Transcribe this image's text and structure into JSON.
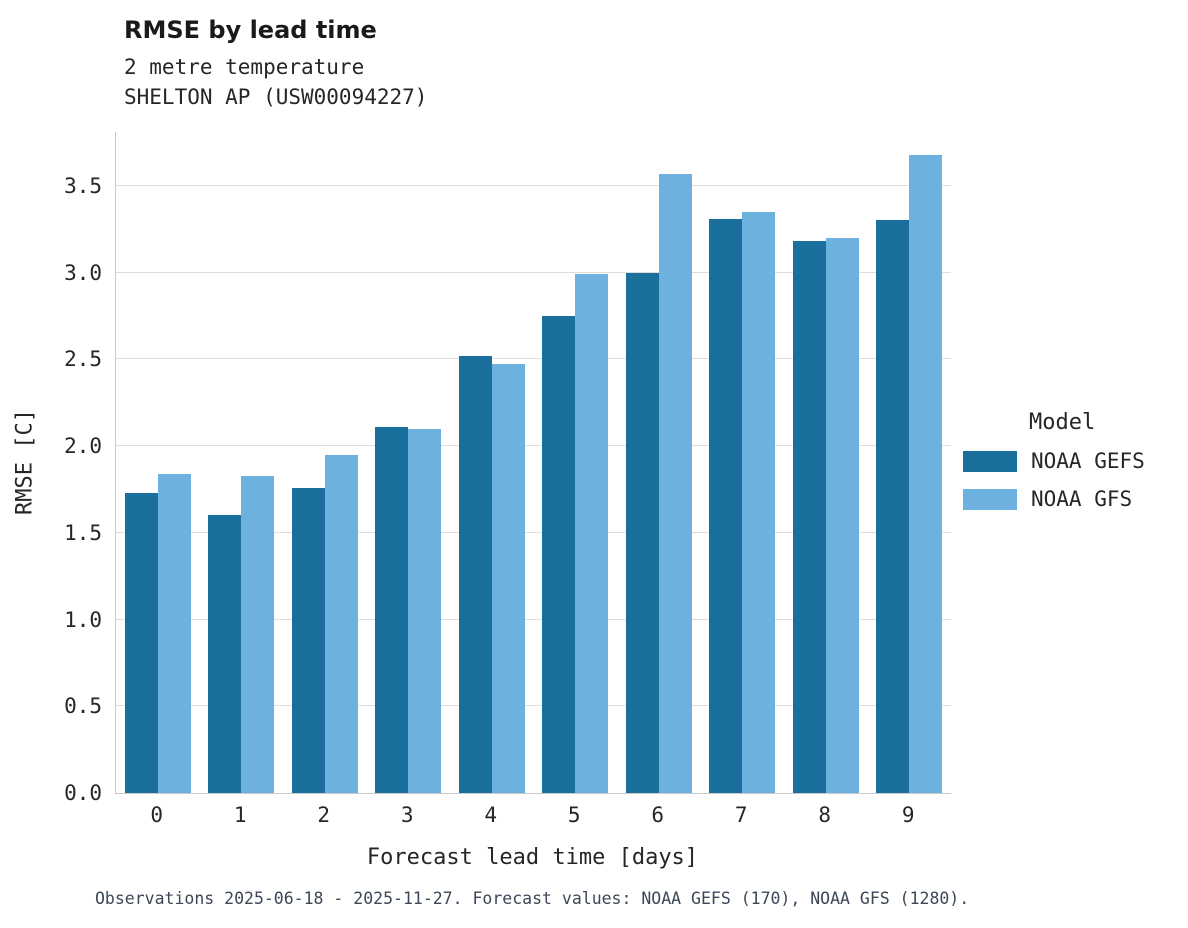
{
  "header": {
    "title": "RMSE by lead time",
    "subtitle1": "2 metre temperature",
    "subtitle2": "SHELTON AP (USW00094227)"
  },
  "chart_data": {
    "type": "bar",
    "title": "RMSE by lead time",
    "subtitle_lines": [
      "2 metre temperature",
      "SHELTON AP (USW00094227)"
    ],
    "categories": [
      "0",
      "1",
      "2",
      "3",
      "4",
      "5",
      "6",
      "7",
      "8",
      "9"
    ],
    "series": [
      {
        "name": "NOAA GEFS",
        "color": "#1a6f9c",
        "values": [
          1.73,
          1.6,
          1.76,
          2.11,
          2.52,
          2.75,
          3.0,
          3.31,
          3.18,
          3.3
        ]
      },
      {
        "name": "NOAA GFS",
        "color": "#6db1de",
        "values": [
          1.84,
          1.83,
          1.95,
          2.1,
          2.47,
          2.99,
          3.57,
          3.35,
          3.2,
          3.68
        ]
      }
    ],
    "xlabel": "Forecast lead time [days]",
    "ylabel": "RMSE [C]",
    "yticks": {
      "labels": [
        "0.0",
        "0.5",
        "1.0",
        "1.5",
        "2.0",
        "2.5",
        "3.0",
        "3.5"
      ],
      "values": [
        0.0,
        0.5,
        1.0,
        1.5,
        2.0,
        2.5,
        3.0,
        3.5
      ]
    },
    "ylim": [
      0,
      3.81
    ],
    "grid": true,
    "legend": {
      "title": "Model",
      "position": "right",
      "entries": [
        "NOAA GEFS",
        "NOAA GFS"
      ]
    }
  },
  "caption": "Observations 2025-06-18 - 2025-11-27. Forecast values: NOAA GEFS (170), NOAA GFS (1280)."
}
